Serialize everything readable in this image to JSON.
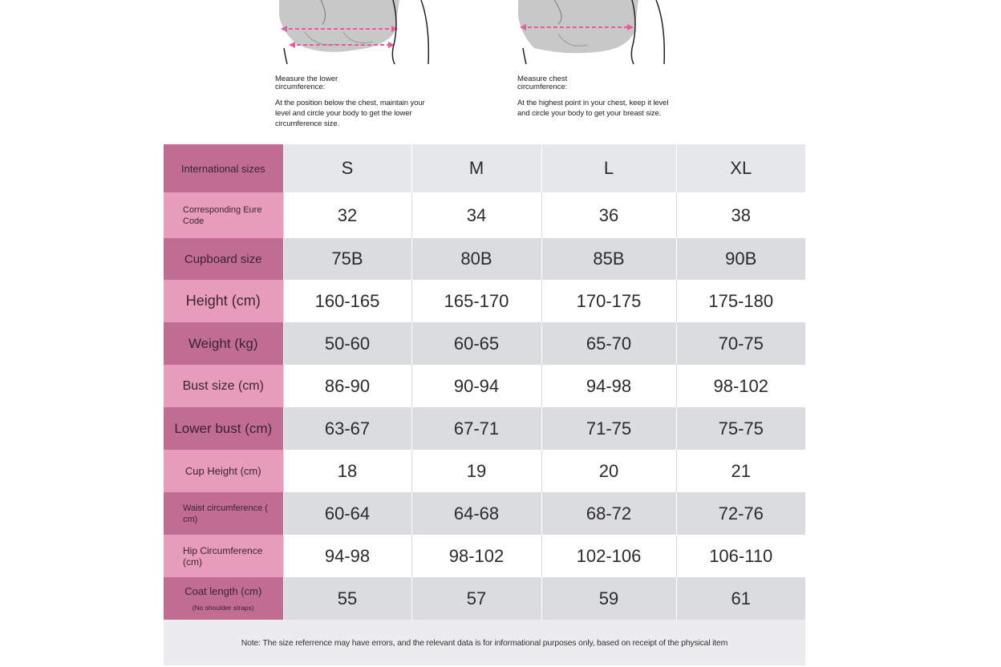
{
  "instructions": {
    "left": {
      "title": "Measure the lower circumference:",
      "body": "At the position below the chest, maintain your level and circle your body to get the lower circumference size."
    },
    "right": {
      "title": "Measure chest circumference:",
      "body": "At the highest point in your chest, keep it level and circle your body to get your breast size."
    }
  },
  "table": {
    "rows": [
      {
        "label": "International sizes",
        "values": [
          "S",
          "M",
          "L",
          "XL"
        ]
      },
      {
        "label": "Corresponding Eure Code",
        "values": [
          "32",
          "34",
          "36",
          "38"
        ]
      },
      {
        "label": "Cupboard size",
        "values": [
          "75B",
          "80B",
          "85B",
          "90B"
        ]
      },
      {
        "label": "Height (cm)",
        "values": [
          "160-165",
          "165-170",
          "170-175",
          "175-180"
        ]
      },
      {
        "label": "Weight (kg)",
        "values": [
          "50-60",
          "60-65",
          "65-70",
          "70-75"
        ]
      },
      {
        "label": "Bust size (cm)",
        "values": [
          "86-90",
          "90-94",
          "94-98",
          "98-102"
        ]
      },
      {
        "label": "Lower bust (cm)",
        "values": [
          "63-67",
          "67-71",
          "71-75",
          "75-75"
        ]
      },
      {
        "label": "Cup Height (cm)",
        "values": [
          "18",
          "19",
          "20",
          "21"
        ]
      },
      {
        "label": "Waist circumference ( cm)",
        "values": [
          "60-64",
          "64-68",
          "68-72",
          "72-76"
        ]
      },
      {
        "label": "Hip Circumference (cm)",
        "values": [
          "94-98",
          "98-102",
          "102-106",
          "106-110"
        ]
      },
      {
        "label": "Coat length (cm)",
        "sublabel": "(No shoulder straps)",
        "values": [
          "55",
          "57",
          "59",
          "61"
        ]
      }
    ],
    "note": "Note: The size referrence may have errors, and the relevant data is for informational purposes only, based on receipt of the physical item"
  },
  "colors": {
    "label_dark": "#c06c93",
    "label_light": "#e89cbc",
    "row_grey": "#dadcdf",
    "arrow_pink": "#e85a9a"
  },
  "icons": [
    "bust-measure-illustration-lower",
    "bust-measure-illustration-chest"
  ]
}
